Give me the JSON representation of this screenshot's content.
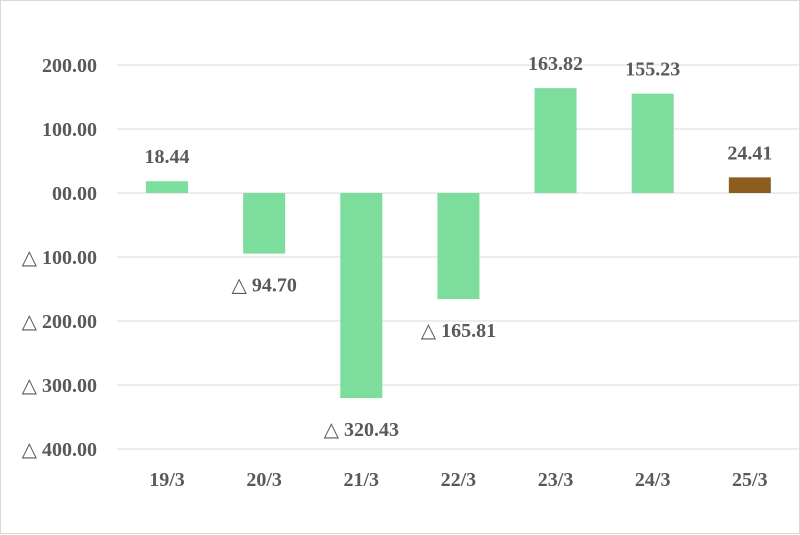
{
  "chart_data": {
    "type": "bar",
    "categories": [
      "19/3",
      "20/3",
      "21/3",
      "22/3",
      "23/3",
      "24/3",
      "25/3"
    ],
    "values": [
      18.44,
      -94.7,
      -320.43,
      -165.81,
      163.82,
      155.23,
      24.41
    ],
    "data_labels": [
      "18.44",
      "△ 94.70",
      "△ 320.43",
      "△ 165.81",
      "163.82",
      "155.23",
      "24.41"
    ],
    "bar_colors": [
      "#7ddd9c",
      "#7ddd9c",
      "#7ddd9c",
      "#7ddd9c",
      "#7ddd9c",
      "#7ddd9c",
      "#8b5e1f"
    ],
    "y_ticks": [
      200,
      100,
      0,
      -100,
      -200,
      -300,
      -400
    ],
    "y_tick_labels": [
      "200.00",
      "100.00",
      "00.00",
      "△ 100.00",
      "△ 200.00",
      "△ 300.00",
      "△ 400.00"
    ],
    "ylim": [
      -400,
      200
    ],
    "grid": true,
    "gridline_color": "#d9d9d9",
    "text_color": "#595959",
    "title": "",
    "xlabel": "",
    "ylabel": ""
  }
}
